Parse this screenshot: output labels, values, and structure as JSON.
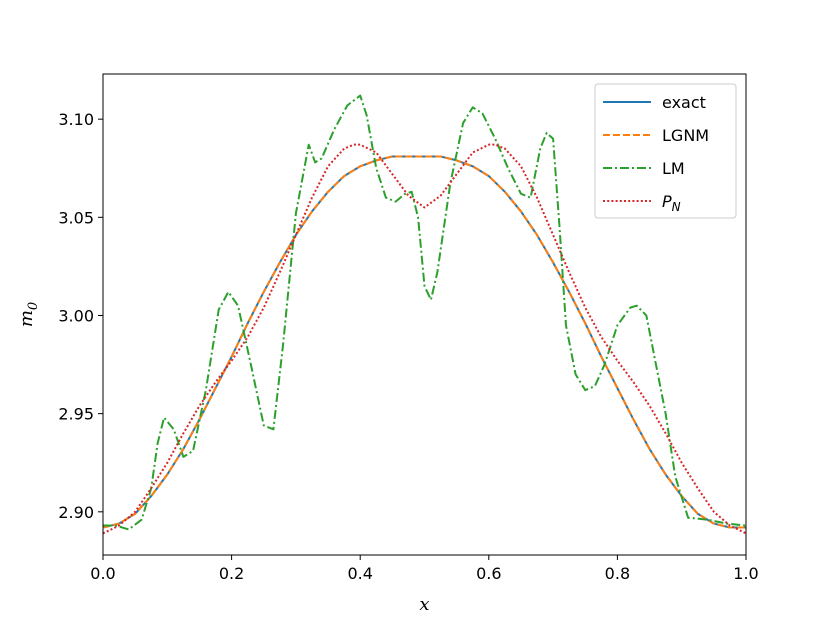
{
  "chart_data": {
    "type": "line",
    "title": "",
    "xlabel": "x",
    "ylabel": "m",
    "ylabel_sub": "0",
    "xlim": [
      0.0,
      1.0
    ],
    "ylim": [
      2.878,
      3.123
    ],
    "xticks": [
      0.0,
      0.2,
      0.4,
      0.6,
      0.8,
      1.0
    ],
    "xtick_labels": [
      "0.0",
      "0.2",
      "0.4",
      "0.6",
      "0.8",
      "1.0"
    ],
    "yticks": [
      2.9,
      2.95,
      3.0,
      3.05,
      3.1
    ],
    "ytick_labels": [
      "2.90",
      "2.95",
      "3.00",
      "3.05",
      "3.10"
    ],
    "grid": false,
    "legend_position": "top-right",
    "series": [
      {
        "name": "exact",
        "legend_main": "exact",
        "legend_sub": "",
        "color": "#1f77b4",
        "dash": "solid",
        "x": [
          0.0,
          0.025,
          0.05,
          0.075,
          0.1,
          0.125,
          0.15,
          0.175,
          0.2,
          0.225,
          0.25,
          0.275,
          0.3,
          0.325,
          0.35,
          0.375,
          0.4,
          0.425,
          0.45,
          0.475,
          0.5,
          0.525,
          0.55,
          0.575,
          0.6,
          0.625,
          0.65,
          0.675,
          0.7,
          0.725,
          0.75,
          0.775,
          0.8,
          0.825,
          0.85,
          0.875,
          0.9,
          0.925,
          0.95,
          0.975,
          1.0
        ],
        "y": [
          2.892,
          2.894,
          2.899,
          2.908,
          2.919,
          2.932,
          2.947,
          2.963,
          2.979,
          2.996,
          3.012,
          3.027,
          3.041,
          3.053,
          3.063,
          3.071,
          3.076,
          3.079,
          3.081,
          3.081,
          3.081,
          3.081,
          3.079,
          3.076,
          3.071,
          3.063,
          3.053,
          3.041,
          3.027,
          3.012,
          2.996,
          2.979,
          2.963,
          2.947,
          2.932,
          2.919,
          2.908,
          2.899,
          2.894,
          2.892,
          2.892
        ]
      },
      {
        "name": "LGNM",
        "legend_main": "LGNM",
        "legend_sub": "",
        "color": "#ff7f0e",
        "dash": "dashed",
        "x": [
          0.0,
          0.025,
          0.05,
          0.075,
          0.1,
          0.125,
          0.15,
          0.175,
          0.2,
          0.225,
          0.25,
          0.275,
          0.3,
          0.325,
          0.35,
          0.375,
          0.4,
          0.425,
          0.45,
          0.475,
          0.5,
          0.525,
          0.55,
          0.575,
          0.6,
          0.625,
          0.65,
          0.675,
          0.7,
          0.725,
          0.75,
          0.775,
          0.8,
          0.825,
          0.85,
          0.875,
          0.9,
          0.925,
          0.95,
          0.975,
          1.0
        ],
        "y": [
          2.892,
          2.894,
          2.899,
          2.908,
          2.919,
          2.932,
          2.947,
          2.963,
          2.979,
          2.996,
          3.012,
          3.027,
          3.041,
          3.053,
          3.063,
          3.071,
          3.076,
          3.079,
          3.081,
          3.081,
          3.081,
          3.081,
          3.079,
          3.076,
          3.071,
          3.063,
          3.053,
          3.041,
          3.027,
          3.012,
          2.996,
          2.979,
          2.963,
          2.947,
          2.932,
          2.919,
          2.908,
          2.899,
          2.894,
          2.892,
          2.892
        ]
      },
      {
        "name": "LM",
        "legend_main": "LM",
        "legend_sub": "",
        "color": "#2ca02c",
        "dash": "dashdot",
        "x": [
          0.0,
          0.02,
          0.04,
          0.06,
          0.075,
          0.085,
          0.095,
          0.11,
          0.125,
          0.14,
          0.16,
          0.18,
          0.195,
          0.21,
          0.23,
          0.25,
          0.265,
          0.28,
          0.3,
          0.32,
          0.33,
          0.34,
          0.36,
          0.38,
          0.4,
          0.41,
          0.425,
          0.44,
          0.455,
          0.47,
          0.48,
          0.49,
          0.5,
          0.51,
          0.52,
          0.54,
          0.56,
          0.575,
          0.59,
          0.61,
          0.63,
          0.65,
          0.665,
          0.68,
          0.69,
          0.7,
          0.71,
          0.72,
          0.735,
          0.75,
          0.765,
          0.78,
          0.8,
          0.82,
          0.83,
          0.845,
          0.86,
          0.875,
          0.89,
          0.91,
          0.94,
          0.97,
          1.0
        ],
        "y": [
          2.893,
          2.893,
          2.891,
          2.896,
          2.912,
          2.935,
          2.948,
          2.942,
          2.928,
          2.931,
          2.962,
          3.003,
          3.012,
          3.005,
          2.975,
          2.944,
          2.942,
          2.985,
          3.052,
          3.087,
          3.078,
          3.08,
          3.095,
          3.107,
          3.112,
          3.102,
          3.075,
          3.06,
          3.058,
          3.062,
          3.063,
          3.05,
          3.015,
          3.008,
          3.022,
          3.067,
          3.098,
          3.106,
          3.103,
          3.09,
          3.075,
          3.062,
          3.06,
          3.085,
          3.093,
          3.09,
          3.045,
          2.995,
          2.97,
          2.962,
          2.964,
          2.975,
          2.995,
          3.004,
          3.005,
          3.0,
          2.975,
          2.95,
          2.918,
          2.897,
          2.896,
          2.894,
          2.893
        ]
      },
      {
        "name": "P_N",
        "legend_main": "P",
        "legend_sub": "N",
        "color": "#d62728",
        "dash": "dotted",
        "x": [
          0.0,
          0.025,
          0.05,
          0.075,
          0.1,
          0.125,
          0.15,
          0.175,
          0.2,
          0.225,
          0.25,
          0.275,
          0.3,
          0.325,
          0.35,
          0.375,
          0.39,
          0.4,
          0.425,
          0.45,
          0.475,
          0.5,
          0.525,
          0.55,
          0.575,
          0.6,
          0.61,
          0.625,
          0.65,
          0.675,
          0.7,
          0.725,
          0.75,
          0.775,
          0.8,
          0.825,
          0.85,
          0.875,
          0.9,
          0.925,
          0.95,
          0.975,
          1.0
        ],
        "y": [
          2.889,
          2.893,
          2.9,
          2.912,
          2.925,
          2.94,
          2.954,
          2.966,
          2.977,
          2.989,
          3.004,
          3.022,
          3.041,
          3.06,
          3.076,
          3.085,
          3.087,
          3.087,
          3.083,
          3.072,
          3.061,
          3.055,
          3.061,
          3.072,
          3.083,
          3.087,
          3.087,
          3.085,
          3.076,
          3.06,
          3.041,
          3.022,
          3.004,
          2.989,
          2.977,
          2.966,
          2.954,
          2.94,
          2.925,
          2.912,
          2.9,
          2.893,
          2.889
        ]
      }
    ]
  }
}
